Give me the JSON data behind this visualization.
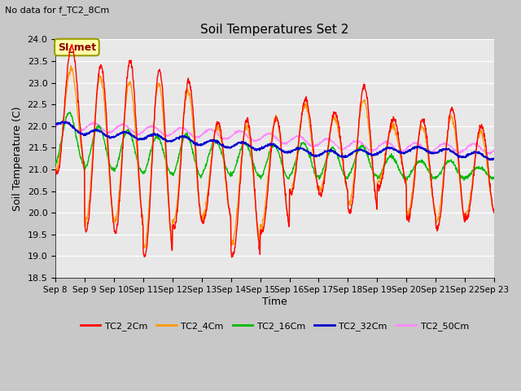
{
  "title": "Soil Temperatures Set 2",
  "top_left_note": "No data for f_TC2_8Cm",
  "ylabel": "Soil Temperature (C)",
  "xlabel": "Time",
  "annotation": "SI_met",
  "ylim": [
    18.5,
    24.0
  ],
  "yticks": [
    18.5,
    19.0,
    19.5,
    20.0,
    20.5,
    21.0,
    21.5,
    22.0,
    22.5,
    23.0,
    23.5,
    24.0
  ],
  "xtick_labels": [
    "Sep 8",
    "Sep 9",
    "Sep 10",
    "Sep 11",
    "Sep 12",
    "Sep 13",
    "Sep 14",
    "Sep 15",
    "Sep 16",
    "Sep 17",
    "Sep 18",
    "Sep 19",
    "Sep 20",
    "Sep 21",
    "Sep 22",
    "Sep 23"
  ],
  "n_days": 15,
  "colors": {
    "TC2_2Cm": "#ff0000",
    "TC2_4Cm": "#ff9900",
    "TC2_16Cm": "#00bb00",
    "TC2_32Cm": "#0000cc",
    "TC2_50Cm": "#ff88ff"
  },
  "line_widths": {
    "TC2_2Cm": 1.0,
    "TC2_4Cm": 1.0,
    "TC2_16Cm": 1.0,
    "TC2_32Cm": 1.3,
    "TC2_50Cm": 1.0
  },
  "fig_bg_color": "#c8c8c8",
  "plot_bg_color": "#e8e8e8",
  "grid_color": "#ffffff",
  "title_fontsize": 11,
  "axis_label_fontsize": 9,
  "tick_fontsize": 8,
  "legend_fontsize": 8,
  "note_fontsize": 8
}
